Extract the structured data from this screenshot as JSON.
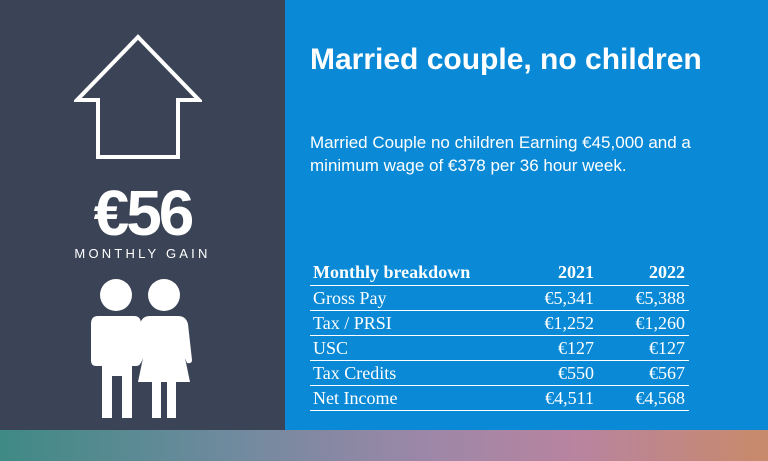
{
  "header": {
    "title": "Married couple, no children",
    "description": "Married Couple no children Earning €45,000 and a minimum wage of €378 per 36 hour week."
  },
  "summary": {
    "gain_amount": "€56",
    "gain_label": "MONTHLY GAIN",
    "icons": [
      "up-arrow-house-icon",
      "couple-icon"
    ]
  },
  "table": {
    "headers": [
      "Monthly breakdown",
      "2021",
      "2022"
    ],
    "rows": [
      [
        "Gross Pay",
        "€5,341",
        "€5,388"
      ],
      [
        "Tax / PRSI",
        "€1,252",
        "€1,260"
      ],
      [
        "USC",
        "€127",
        "€127"
      ],
      [
        "Tax Credits",
        "€550",
        "€567"
      ],
      [
        "Net Income",
        "€4,511",
        "€4,568"
      ]
    ]
  },
  "colors": {
    "left_panel": "#3b4456",
    "right_panel": "#0a8ad6",
    "text": "#ffffff"
  }
}
